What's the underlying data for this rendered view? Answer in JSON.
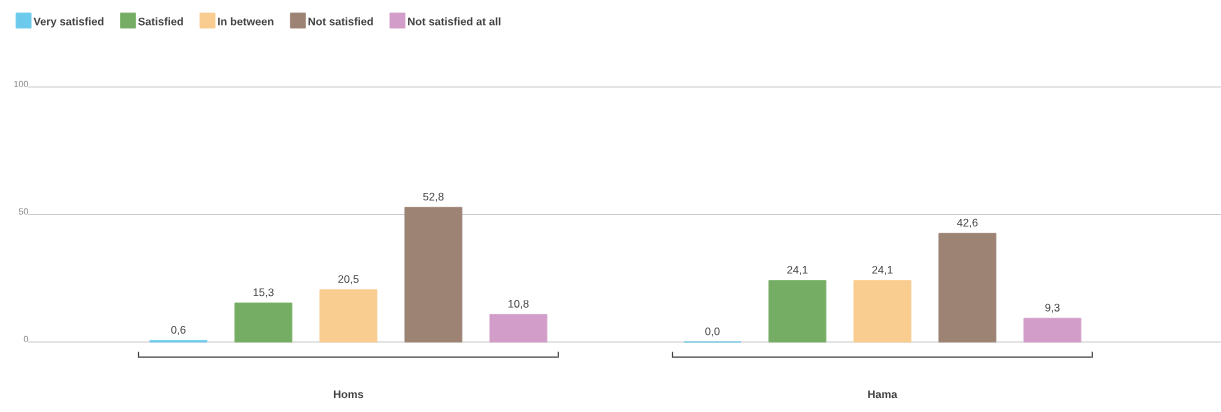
{
  "chart_data": {
    "type": "bar",
    "categories": [
      "Homs",
      "Hama"
    ],
    "series": [
      {
        "name": "Very satisfied",
        "color": "#6ccbec",
        "values": [
          0.6,
          0.0
        ],
        "value_labels": [
          "0,6",
          "0,0"
        ]
      },
      {
        "name": "Satisfied",
        "color": "#76ad65",
        "values": [
          15.3,
          24.1
        ],
        "value_labels": [
          "15,3",
          "24,1"
        ]
      },
      {
        "name": "In between",
        "color": "#f9cc8f",
        "values": [
          20.5,
          24.1
        ],
        "value_labels": [
          "20,5",
          "24,1"
        ]
      },
      {
        "name": "Not satisfied",
        "color": "#9c8373",
        "values": [
          52.8,
          42.6
        ],
        "value_labels": [
          "52,8",
          "42,6"
        ]
      },
      {
        "name": "Not satisfied at all",
        "color": "#d29dc8",
        "values": [
          10.8,
          9.3
        ],
        "value_labels": [
          "10,8",
          "9,3"
        ]
      }
    ],
    "ylim": [
      0,
      100
    ],
    "yticks": [
      0,
      50,
      100
    ],
    "grid": "y",
    "legend": "top left"
  }
}
